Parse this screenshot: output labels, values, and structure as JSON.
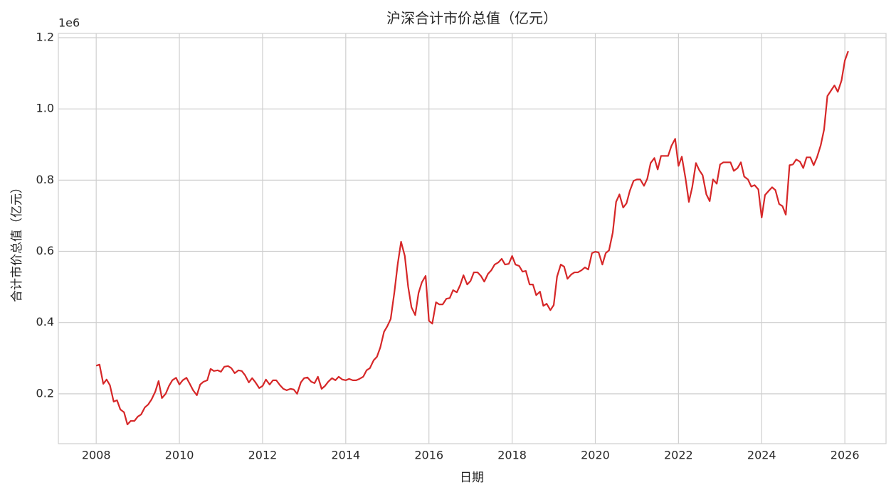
{
  "chart_data": {
    "type": "line",
    "title": "沪深合计市价总值（亿元）",
    "x_label": "日期",
    "y_label": "合计市价总值（亿元）",
    "y_offset_label": "1e6",
    "color": "#d62728",
    "grid": true,
    "xlim": [
      2007.09,
      2026.99
    ],
    "xticks": [
      2008,
      2010,
      2012,
      2014,
      2016,
      2018,
      2020,
      2022,
      2024,
      2026
    ],
    "ylim": [
      0.06,
      1.212
    ],
    "yticks": [
      0.2,
      0.4,
      0.6,
      0.8,
      {
        "value": 1,
        "label": "1.0"
      },
      1.2
    ],
    "x": [
      2008,
      2008.08,
      2008.17,
      2008.25,
      2008.33,
      2008.42,
      2008.5,
      2008.58,
      2008.67,
      2008.75,
      2008.83,
      2008.92,
      2009,
      2009.08,
      2009.17,
      2009.25,
      2009.33,
      2009.42,
      2009.5,
      2009.58,
      2009.67,
      2009.75,
      2009.83,
      2009.92,
      2010,
      2010.08,
      2010.17,
      2010.25,
      2010.33,
      2010.42,
      2010.5,
      2010.58,
      2010.67,
      2010.75,
      2010.83,
      2010.92,
      2011,
      2011.08,
      2011.17,
      2011.25,
      2011.33,
      2011.42,
      2011.5,
      2011.58,
      2011.67,
      2011.75,
      2011.83,
      2011.92,
      2012,
      2012.08,
      2012.17,
      2012.25,
      2012.33,
      2012.42,
      2012.5,
      2012.58,
      2012.67,
      2012.75,
      2012.83,
      2012.92,
      2013,
      2013.08,
      2013.17,
      2013.25,
      2013.33,
      2013.42,
      2013.5,
      2013.58,
      2013.67,
      2013.75,
      2013.83,
      2013.92,
      2014,
      2014.08,
      2014.17,
      2014.25,
      2014.33,
      2014.42,
      2014.5,
      2014.58,
      2014.67,
      2014.75,
      2014.83,
      2014.92,
      2015,
      2015.08,
      2015.17,
      2015.25,
      2015.33,
      2015.42,
      2015.5,
      2015.58,
      2015.67,
      2015.75,
      2015.83,
      2015.92,
      2016,
      2016.08,
      2016.17,
      2016.25,
      2016.33,
      2016.42,
      2016.5,
      2016.58,
      2016.67,
      2016.75,
      2016.83,
      2016.92,
      2017,
      2017.08,
      2017.17,
      2017.25,
      2017.33,
      2017.42,
      2017.5,
      2017.58,
      2017.67,
      2017.75,
      2017.83,
      2017.92,
      2018,
      2018.08,
      2018.17,
      2018.25,
      2018.33,
      2018.42,
      2018.5,
      2018.58,
      2018.67,
      2018.75,
      2018.83,
      2018.92,
      2019,
      2019.08,
      2019.17,
      2019.25,
      2019.33,
      2019.42,
      2019.5,
      2019.58,
      2019.67,
      2019.75,
      2019.83,
      2019.92,
      2020,
      2020.08,
      2020.17,
      2020.25,
      2020.33,
      2020.42,
      2020.5,
      2020.58,
      2020.67,
      2020.75,
      2020.83,
      2020.92,
      2021,
      2021.08,
      2021.17,
      2021.25,
      2021.33,
      2021.42,
      2021.5,
      2021.58,
      2021.67,
      2021.75,
      2021.83,
      2021.92,
      2022,
      2022.08,
      2022.17,
      2022.25,
      2022.33,
      2022.42,
      2022.5,
      2022.58,
      2022.67,
      2022.75,
      2022.83,
      2022.92,
      2023,
      2023.08,
      2023.17,
      2023.25,
      2023.33,
      2023.42,
      2023.5,
      2023.58,
      2023.67,
      2023.75,
      2023.83,
      2023.92,
      2024,
      2024.08,
      2024.17,
      2024.25,
      2024.33,
      2024.42,
      2024.5,
      2024.58,
      2024.67,
      2024.75,
      2024.83,
      2024.92,
      2025,
      2025.08,
      2025.17,
      2025.25,
      2025.33,
      2025.42,
      2025.5,
      2025.58,
      2025.67,
      2025.75,
      2025.83,
      2025.92,
      2026,
      2026.08
    ],
    "values": [
      0.279,
      0.282,
      0.228,
      0.24,
      0.224,
      0.178,
      0.182,
      0.156,
      0.148,
      0.114,
      0.124,
      0.124,
      0.136,
      0.142,
      0.162,
      0.17,
      0.184,
      0.206,
      0.236,
      0.188,
      0.2,
      0.222,
      0.238,
      0.245,
      0.226,
      0.238,
      0.245,
      0.228,
      0.21,
      0.196,
      0.226,
      0.234,
      0.238,
      0.27,
      0.264,
      0.266,
      0.262,
      0.276,
      0.278,
      0.272,
      0.258,
      0.266,
      0.264,
      0.252,
      0.232,
      0.244,
      0.232,
      0.216,
      0.222,
      0.24,
      0.226,
      0.238,
      0.238,
      0.224,
      0.214,
      0.21,
      0.214,
      0.212,
      0.2,
      0.232,
      0.244,
      0.246,
      0.234,
      0.23,
      0.248,
      0.214,
      0.222,
      0.234,
      0.244,
      0.238,
      0.248,
      0.24,
      0.238,
      0.242,
      0.238,
      0.238,
      0.242,
      0.248,
      0.266,
      0.272,
      0.294,
      0.304,
      0.33,
      0.374,
      0.39,
      0.41,
      0.486,
      0.565,
      0.627,
      0.587,
      0.501,
      0.443,
      0.421,
      0.483,
      0.513,
      0.531,
      0.405,
      0.397,
      0.457,
      0.451,
      0.451,
      0.467,
      0.469,
      0.491,
      0.485,
      0.505,
      0.533,
      0.507,
      0.517,
      0.541,
      0.541,
      0.531,
      0.515,
      0.537,
      0.547,
      0.563,
      0.569,
      0.579,
      0.563,
      0.565,
      0.587,
      0.563,
      0.559,
      0.543,
      0.545,
      0.507,
      0.507,
      0.477,
      0.487,
      0.447,
      0.453,
      0.435,
      0.449,
      0.529,
      0.563,
      0.557,
      0.523,
      0.535,
      0.541,
      0.541,
      0.547,
      0.555,
      0.549,
      0.595,
      0.599,
      0.597,
      0.563,
      0.595,
      0.603,
      0.653,
      0.739,
      0.76,
      0.723,
      0.735,
      0.77,
      0.798,
      0.802,
      0.802,
      0.784,
      0.804,
      0.848,
      0.862,
      0.83,
      0.868,
      0.868,
      0.868,
      0.896,
      0.916,
      0.84,
      0.866,
      0.804,
      0.739,
      0.78,
      0.848,
      0.828,
      0.814,
      0.76,
      0.741,
      0.802,
      0.79,
      0.844,
      0.85,
      0.85,
      0.85,
      0.826,
      0.834,
      0.85,
      0.81,
      0.802,
      0.782,
      0.786,
      0.774,
      0.695,
      0.758,
      0.77,
      0.78,
      0.772,
      0.733,
      0.727,
      0.703,
      0.842,
      0.844,
      0.858,
      0.852,
      0.834,
      0.864,
      0.864,
      0.842,
      0.864,
      0.898,
      0.942,
      1.036,
      1.052,
      1.066,
      1.048,
      1.08,
      1.136,
      1.162
    ]
  }
}
